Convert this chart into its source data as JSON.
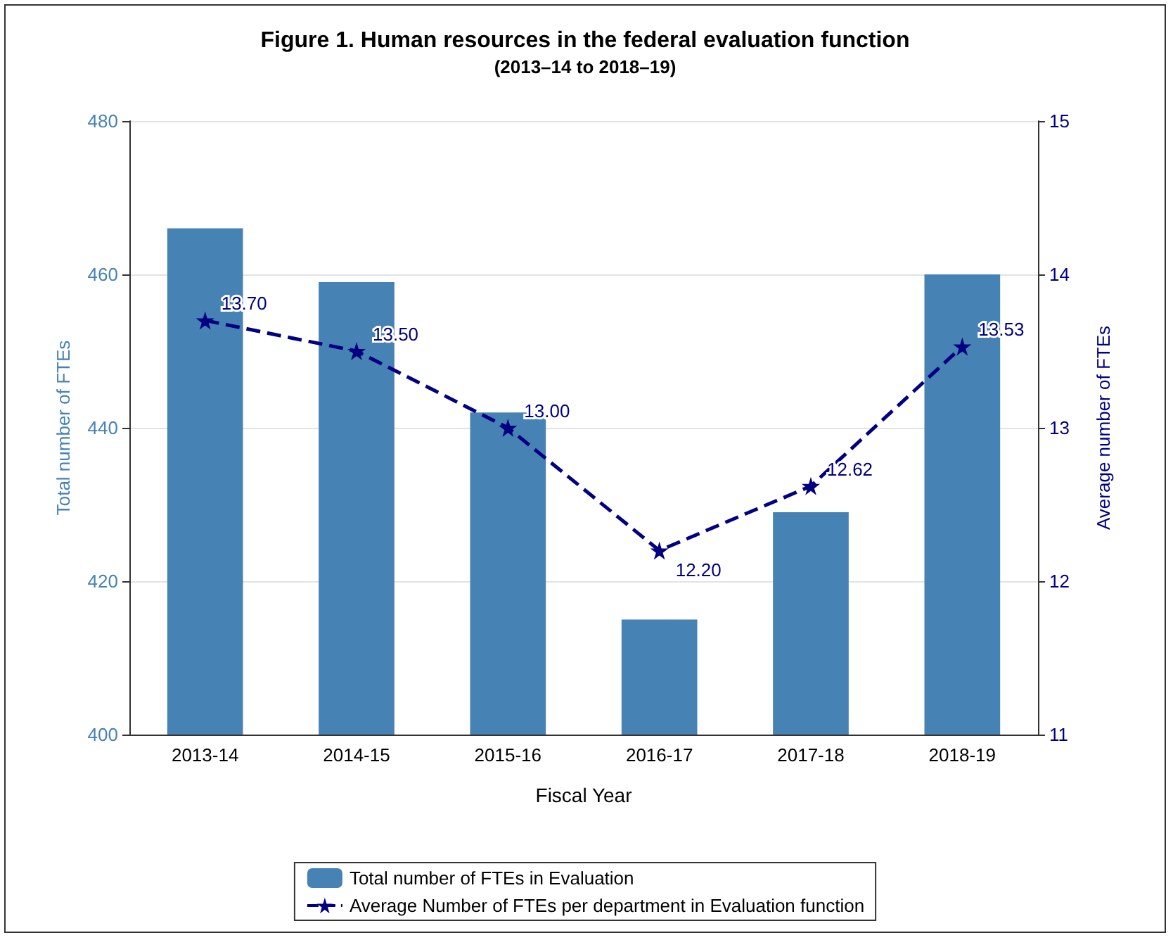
{
  "chart_data": {
    "type": "bar",
    "title": "Figure 1. Human resources in the federal evaluation function",
    "subtitle": "(2013–14 to 2018–19)",
    "xlabel": "Fiscal Year",
    "ylabel": "Total number of FTEs",
    "y2label": "Average number of FTEs",
    "categories": [
      "2013-14",
      "2014-15",
      "2015-16",
      "2016-17",
      "2017-18",
      "2018-19"
    ],
    "series": [
      {
        "name": "Total number of FTEs in Evaluation",
        "color": "#4682b4",
        "values": [
          466,
          459,
          442,
          415,
          429,
          460
        ]
      },
      {
        "name": "Average Number of FTEs per department in Evaluation function",
        "type": "line",
        "axis": "y2",
        "color": "#000080",
        "values": [
          13.7,
          13.5,
          13.0,
          12.2,
          12.62,
          13.53
        ],
        "value_labels": [
          "13.70",
          "13.50",
          "13.00",
          "12.20",
          "12.62",
          "13.53"
        ],
        "marker": "star",
        "line_style": "dashed"
      }
    ],
    "ylim": [
      400,
      480
    ],
    "yticks": [
      400,
      420,
      440,
      460,
      480
    ],
    "y2lim": [
      11,
      15
    ],
    "y2ticks": [
      11,
      12,
      13,
      14,
      15
    ],
    "grid": "y",
    "legend": "bottom"
  }
}
